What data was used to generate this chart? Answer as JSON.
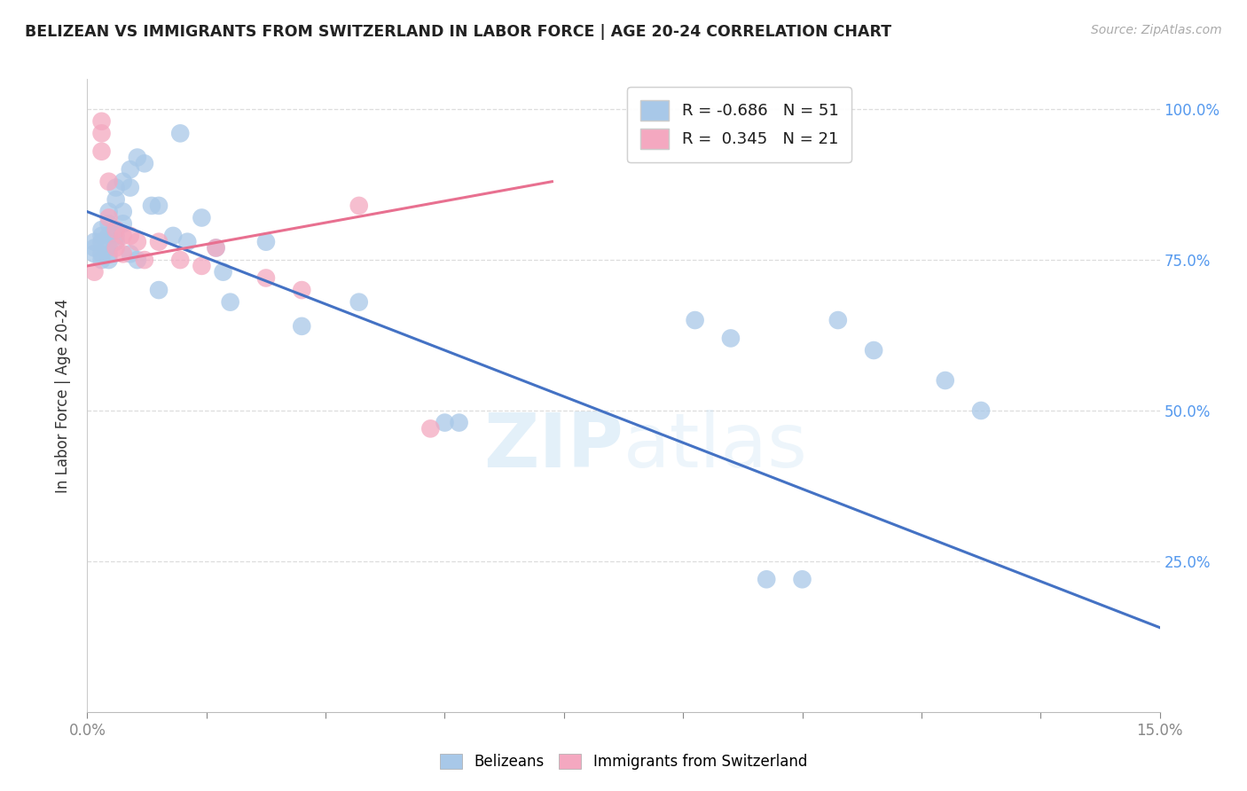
{
  "title": "BELIZEAN VS IMMIGRANTS FROM SWITZERLAND IN LABOR FORCE | AGE 20-24 CORRELATION CHART",
  "source": "Source: ZipAtlas.com",
  "ylabel": "In Labor Force | Age 20-24",
  "xlim": [
    0.0,
    0.15
  ],
  "ylim": [
    0.0,
    1.05
  ],
  "yticks": [
    0.25,
    0.5,
    0.75,
    1.0
  ],
  "belizean_color": "#a8c8e8",
  "swiss_color": "#f4a8c0",
  "belizean_line_color": "#4472c4",
  "swiss_line_color": "#e87090",
  "watermark_color": "#d0e8f8",
  "legend_r_belizean": "-0.686",
  "legend_n_belizean": "51",
  "legend_r_swiss": "0.345",
  "legend_n_swiss": "21",
  "belizean_x": [
    0.001,
    0.001,
    0.001,
    0.002,
    0.002,
    0.002,
    0.002,
    0.002,
    0.003,
    0.003,
    0.003,
    0.003,
    0.003,
    0.003,
    0.004,
    0.004,
    0.004,
    0.004,
    0.004,
    0.005,
    0.005,
    0.005,
    0.006,
    0.006,
    0.006,
    0.007,
    0.007,
    0.008,
    0.009,
    0.01,
    0.01,
    0.012,
    0.013,
    0.014,
    0.016,
    0.018,
    0.019,
    0.02,
    0.025,
    0.03,
    0.038,
    0.05,
    0.052,
    0.085,
    0.09,
    0.095,
    0.1,
    0.105,
    0.11,
    0.12,
    0.125
  ],
  "belizean_y": [
    0.78,
    0.77,
    0.76,
    0.8,
    0.79,
    0.78,
    0.76,
    0.75,
    0.83,
    0.81,
    0.79,
    0.77,
    0.76,
    0.75,
    0.87,
    0.85,
    0.8,
    0.79,
    0.78,
    0.88,
    0.83,
    0.81,
    0.9,
    0.87,
    0.76,
    0.92,
    0.75,
    0.91,
    0.84,
    0.84,
    0.7,
    0.79,
    0.96,
    0.78,
    0.82,
    0.77,
    0.73,
    0.68,
    0.78,
    0.64,
    0.68,
    0.48,
    0.48,
    0.65,
    0.62,
    0.22,
    0.22,
    0.65,
    0.6,
    0.55,
    0.5
  ],
  "swiss_x": [
    0.001,
    0.002,
    0.002,
    0.002,
    0.003,
    0.003,
    0.004,
    0.004,
    0.005,
    0.005,
    0.006,
    0.007,
    0.008,
    0.01,
    0.013,
    0.016,
    0.018,
    0.025,
    0.03,
    0.038,
    0.048
  ],
  "swiss_y": [
    0.73,
    0.98,
    0.96,
    0.93,
    0.88,
    0.82,
    0.8,
    0.77,
    0.79,
    0.76,
    0.79,
    0.78,
    0.75,
    0.78,
    0.75,
    0.74,
    0.77,
    0.72,
    0.7,
    0.84,
    0.47
  ],
  "blue_line_x0": 0.0,
  "blue_line_y0": 0.83,
  "blue_line_x1": 0.15,
  "blue_line_y1": 0.14,
  "pink_line_x0": 0.0,
  "pink_line_y0": 0.74,
  "pink_line_x1": 0.065,
  "pink_line_y1": 0.88
}
